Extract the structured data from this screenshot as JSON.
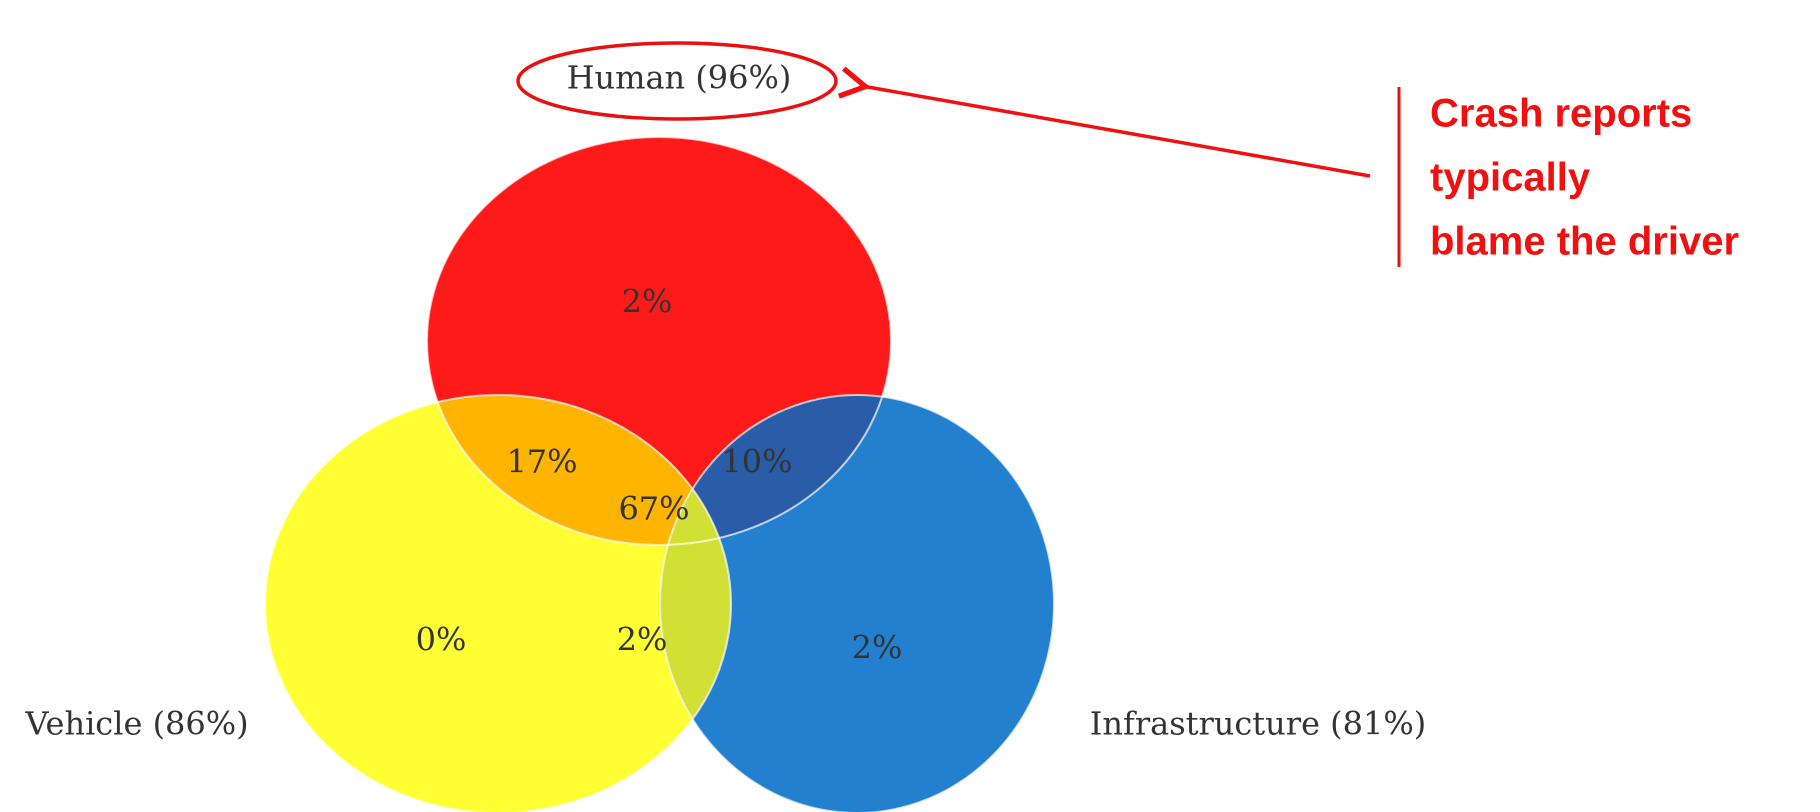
{
  "sets": [
    {
      "label": "Human (96%)"
    },
    {
      "label": "Vehicle (86%)"
    },
    {
      "label": "Infrastructure (81%)"
    }
  ],
  "regions": [
    {
      "label": "2%"
    },
    {
      "label": "17%"
    },
    {
      "label": "10%"
    },
    {
      "label": "67%"
    },
    {
      "label": "0%"
    },
    {
      "label": "2%"
    },
    {
      "label": "2%"
    }
  ],
  "annotation": {
    "lines": [
      "Crash reports",
      "typically",
      "blame the driver"
    ]
  }
}
